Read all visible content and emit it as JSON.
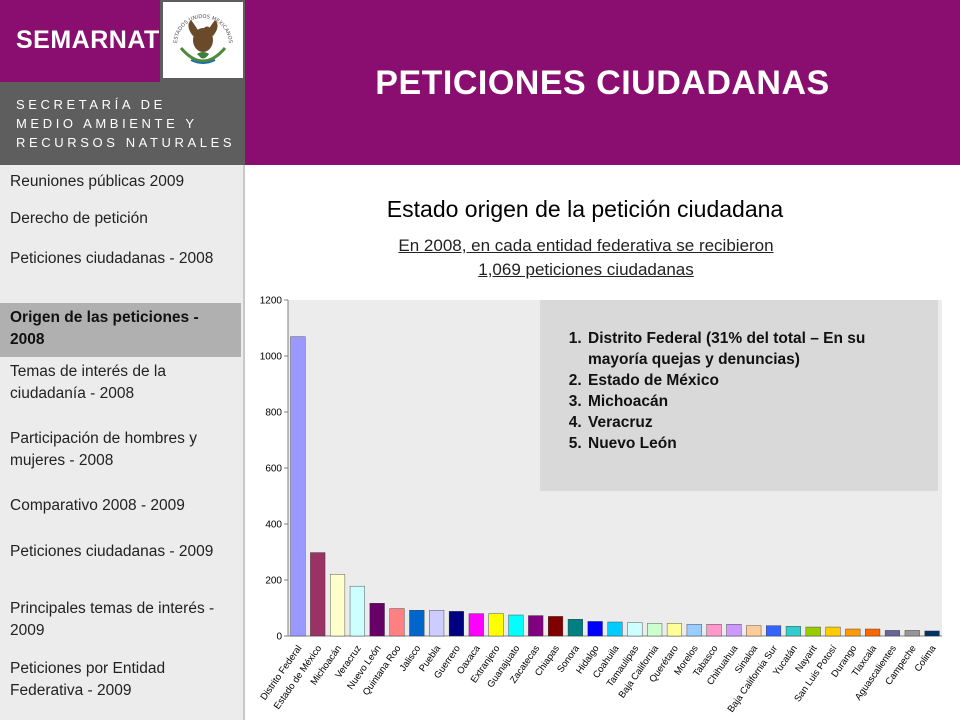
{
  "brand": {
    "logo_text": "SEMARNAT",
    "secretaria_lines": [
      "SECRETARÍA DE",
      "MEDIO AMBIENTE Y",
      "RECURSOS NATURALES"
    ],
    "seal_caption": "ESTADOS UNIDOS MEXICANOS"
  },
  "header": {
    "title": "PETICIONES CIUDADANAS"
  },
  "sidebar": {
    "items": [
      {
        "label": "Reuniones públicas 2009"
      },
      {
        "label": "Derecho de petición"
      },
      {
        "label": "Peticiones ciudadanas - 2008"
      },
      {
        "label": "Origen de las peticiones - 2008",
        "active": true
      },
      {
        "label": "Temas de interés de la ciudadanía - 2008"
      },
      {
        "label": "Participación de hombres y mujeres - 2008"
      },
      {
        "label": "Comparativo 2008 - 2009"
      },
      {
        "label": "Peticiones ciudadanas - 2009"
      },
      {
        "label": "Principales temas de interés - 2009"
      },
      {
        "label": "Peticiones por Entidad Federativa - 2009"
      }
    ]
  },
  "main": {
    "chart_title": "Estado origen de la petición ciudadana",
    "subtitle_lines": [
      "En 2008, en cada entidad federativa se recibieron",
      "1,069 peticiones ciudadanas"
    ],
    "info_list": [
      "Distrito Federal (31% del total – En su mayoría quejas y denuncias)",
      "Estado de México",
      "Michoacán",
      "Veracruz",
      "Nuevo León"
    ]
  },
  "chart_data": {
    "type": "bar",
    "title": "",
    "xlabel": "",
    "ylabel": "",
    "ylim": [
      0,
      1200
    ],
    "yticks": [
      0,
      200,
      400,
      600,
      800,
      1000,
      1200
    ],
    "grid": false,
    "categories": [
      "Distrito Federal",
      "Estado de México",
      "Michoacán",
      "Veracruz",
      "Nuevo León",
      "Quintana Roo",
      "Jalisco",
      "Puebla",
      "Guerrero",
      "Oaxaca",
      "Extranjero",
      "Guanajuato",
      "Zacatecas",
      "Chiapas",
      "Sonora",
      "Hidalgo",
      "Coahuila",
      "Tamaulipas",
      "Baja California",
      "Querétaro",
      "Morelos",
      "Tabasco",
      "Chihuahua",
      "Sinaloa",
      "Baja California Sur",
      "Yucatán",
      "Nayarit",
      "San Luis Potosí",
      "Durango",
      "Tlaxcala",
      "Aguascalientes",
      "Campeche",
      "Colima"
    ],
    "values": [
      1069,
      298,
      220,
      178,
      117,
      98,
      92,
      92,
      88,
      80,
      80,
      75,
      73,
      70,
      60,
      52,
      50,
      48,
      45,
      45,
      42,
      42,
      42,
      37,
      37,
      35,
      32,
      32,
      25,
      25,
      20,
      20,
      18
    ],
    "colors": [
      "#9999ff",
      "#993366",
      "#ffffcc",
      "#ccffff",
      "#660066",
      "#ff8080",
      "#0066cc",
      "#ccccff",
      "#000080",
      "#ff00ff",
      "#ffff00",
      "#00ffff",
      "#800080",
      "#800000",
      "#008080",
      "#0000ff",
      "#00ccff",
      "#ccffff",
      "#ccffcc",
      "#ffff99",
      "#99ccff",
      "#ff99cc",
      "#cc99ff",
      "#ffcc99",
      "#3366ff",
      "#33cccc",
      "#99cc00",
      "#ffcc00",
      "#ff9900",
      "#ff6600",
      "#666699",
      "#969696",
      "#003366"
    ]
  }
}
